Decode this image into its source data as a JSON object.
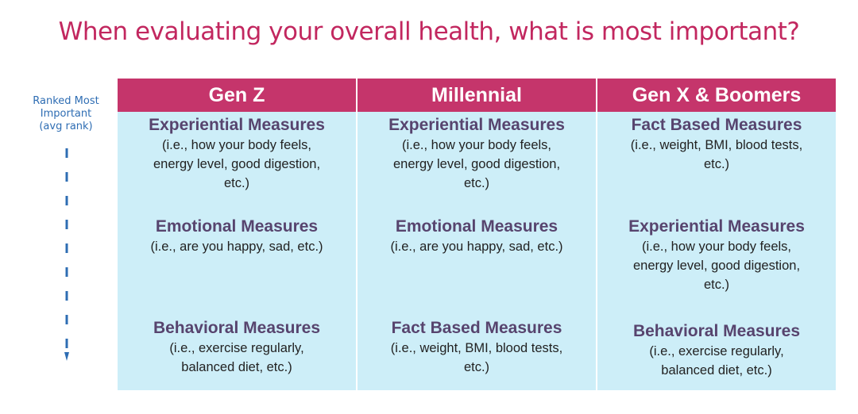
{
  "title": "When evaluating your overall health, what is most important?",
  "rank_axis": {
    "label_lines": [
      "Ranked Most",
      "Important",
      "(avg rank)"
    ],
    "color": "#2e6db3"
  },
  "colors": {
    "title": "#c2275f",
    "header_bg": "#c5356b",
    "cell_bg": "#cdeef8",
    "measure_name": "#57446e"
  },
  "columns": [
    {
      "header": "Gen Z",
      "items": [
        {
          "name": "Experiential Measures",
          "desc_lines": [
            "(i.e., how your body feels,",
            "energy level, good digestion,",
            "etc.)"
          ]
        },
        {
          "name": "Emotional Measures",
          "desc_lines": [
            "(i.e., are you happy, sad, etc.)"
          ]
        },
        {
          "name": "Behavioral Measures",
          "desc_lines": [
            "(i.e., exercise regularly,",
            "balanced diet, etc.)"
          ]
        }
      ]
    },
    {
      "header": "Millennial",
      "items": [
        {
          "name": "Experiential Measures",
          "desc_lines": [
            "(i.e., how your body feels,",
            "energy level, good digestion,",
            "etc.)"
          ]
        },
        {
          "name": "Emotional Measures",
          "desc_lines": [
            "(i.e., are you happy, sad, etc.)"
          ]
        },
        {
          "name": "Fact Based Measures",
          "desc_lines": [
            "(i.e., weight, BMI, blood tests,",
            "etc.)"
          ]
        }
      ]
    },
    {
      "header": "Gen X & Boomers",
      "items": [
        {
          "name": "Fact Based Measures",
          "desc_lines": [
            "(i.e., weight, BMI, blood tests,",
            "etc.)"
          ]
        },
        {
          "name": "Experiential Measures",
          "desc_lines": [
            "(i.e., how your body feels,",
            "energy level, good digestion,",
            "etc.)"
          ]
        },
        {
          "name": "Behavioral Measures",
          "desc_lines": [
            "(i.e., exercise regularly,",
            "balanced diet, etc.)"
          ]
        }
      ]
    }
  ]
}
